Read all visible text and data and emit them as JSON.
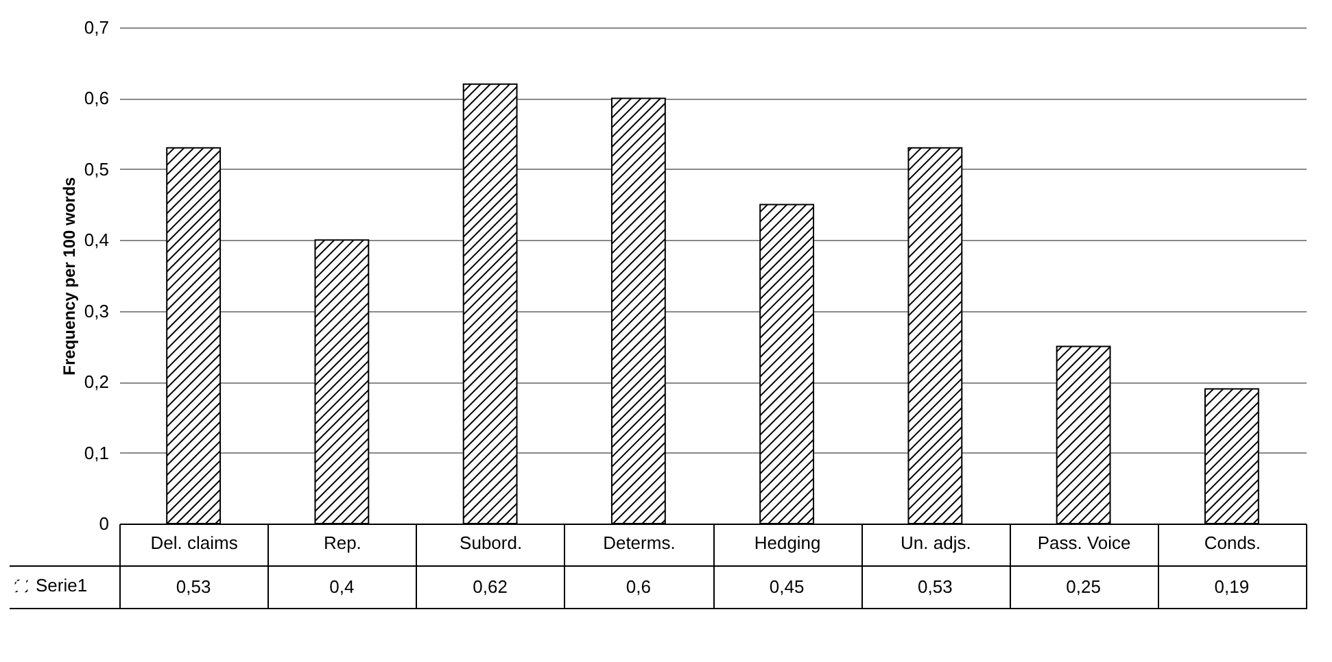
{
  "chart_data": {
    "type": "bar",
    "ylabel": "Frequency per 100 words",
    "categories": [
      "Del. claims",
      "Rep.",
      "Subord.",
      "Determs.",
      "Hedging",
      "Un. adjs.",
      "Pass. Voice",
      "Conds."
    ],
    "series": [
      {
        "name": "Serie1",
        "color": "#000000",
        "values": [
          0.53,
          0.4,
          0.62,
          0.6,
          0.45,
          0.53,
          0.25,
          0.19
        ],
        "value_labels": [
          "0,53",
          "0,4",
          "0,62",
          "0,6",
          "0,45",
          "0,53",
          "0,25",
          "0,19"
        ]
      }
    ],
    "ylim": [
      0,
      0.7
    ],
    "yticks": [
      0,
      {
        "value": 0.1,
        "label": "0,1"
      },
      {
        "value": 0.2,
        "label": "0,2"
      },
      {
        "value": 0.3,
        "label": "0,3"
      },
      {
        "value": 0.4,
        "label": "0,4"
      },
      {
        "value": 0.5,
        "label": "0,5"
      },
      {
        "value": 0.6,
        "label": "0,6"
      },
      {
        "value": 0.7,
        "label": "0,7"
      }
    ],
    "grid": "y",
    "legend": "bottom left"
  }
}
